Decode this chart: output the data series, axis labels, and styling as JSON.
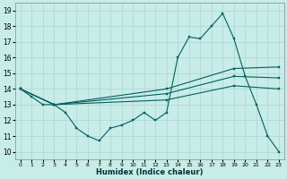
{
  "xlabel": "Humidex (Indice chaleur)",
  "bg_color": "#c8ece8",
  "grid_color": "#b0d8d4",
  "line_color": "#006060",
  "xlim": [
    -0.5,
    23.5
  ],
  "ylim": [
    9.5,
    19.5
  ],
  "xticks": [
    0,
    1,
    2,
    3,
    4,
    5,
    6,
    7,
    8,
    9,
    10,
    11,
    12,
    13,
    14,
    15,
    16,
    17,
    18,
    19,
    20,
    21,
    22,
    23
  ],
  "yticks": [
    10,
    11,
    12,
    13,
    14,
    15,
    16,
    17,
    18,
    19
  ],
  "series": [
    {
      "x": [
        0,
        1,
        2,
        3,
        4,
        5,
        6,
        7,
        8,
        9,
        10,
        11,
        12,
        13,
        14,
        15,
        16,
        17,
        18,
        19,
        20,
        21,
        22,
        23
      ],
      "y": [
        14.0,
        13.5,
        13.0,
        13.0,
        12.5,
        11.5,
        11.0,
        10.7,
        11.5,
        11.7,
        12.0,
        12.5,
        12.0,
        12.5,
        16.0,
        17.3,
        17.2,
        18.0,
        18.8,
        17.2,
        14.8,
        13.0,
        11.0,
        10.0
      ]
    },
    {
      "x": [
        0,
        3,
        13,
        19,
        23
      ],
      "y": [
        14.0,
        13.0,
        14.0,
        15.3,
        15.4
      ]
    },
    {
      "x": [
        0,
        3,
        13,
        19,
        23
      ],
      "y": [
        14.0,
        13.0,
        13.7,
        14.8,
        14.7
      ]
    },
    {
      "x": [
        0,
        3,
        13,
        19,
        23
      ],
      "y": [
        14.0,
        13.0,
        13.3,
        14.2,
        14.0
      ]
    }
  ]
}
